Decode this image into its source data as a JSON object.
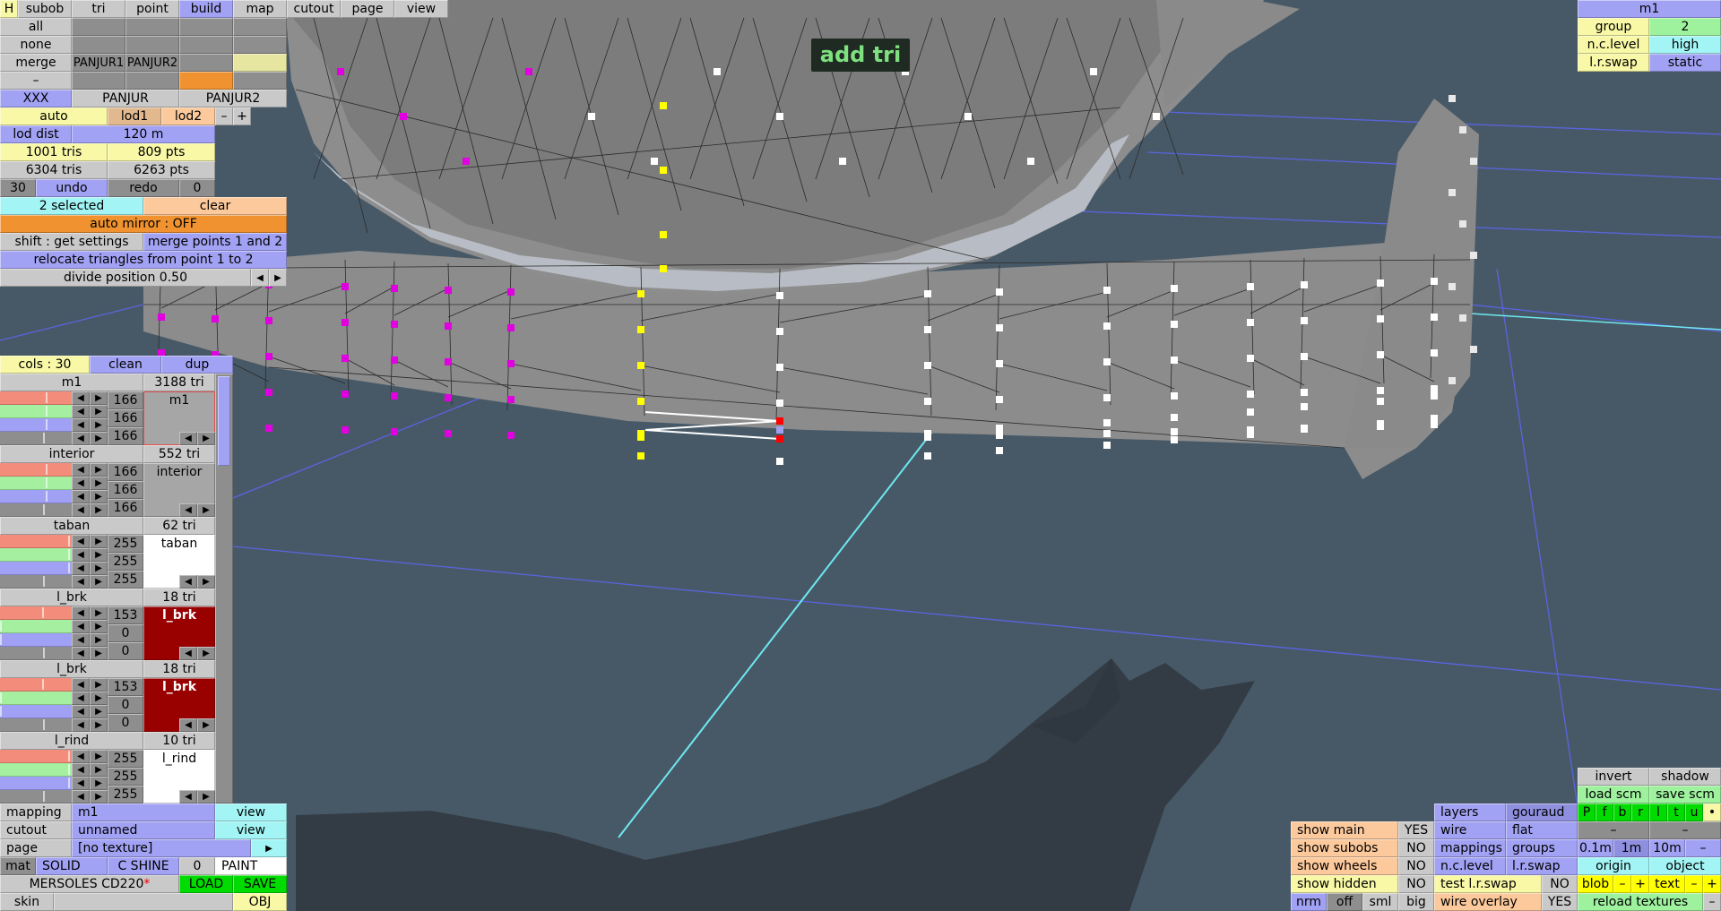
{
  "top_menu": {
    "h": "H",
    "items": [
      "subob",
      "tri",
      "point",
      "build",
      "map",
      "cutout",
      "page",
      "view"
    ],
    "active": "build"
  },
  "subob_panel": {
    "rows": [
      "all",
      "none",
      "merge",
      "–"
    ],
    "merge_cells": [
      "PANJUR1",
      "PANJUR2"
    ],
    "groups": [
      "XXX",
      "PANJUR",
      "PANJUR2"
    ]
  },
  "lod": {
    "auto": "auto",
    "lod1": "lod1",
    "lod2": "lod2",
    "minus": "–",
    "plus": "+",
    "dist_label": "lod dist",
    "dist_value": "120 m",
    "tris1": "1001 tris",
    "pts1": "809 pts",
    "tris2": "6304 tris",
    "pts2": "6263 pts"
  },
  "history": {
    "count": "30",
    "undo": "undo",
    "redo": "redo",
    "redo_count": "0"
  },
  "selection": {
    "selected": "2 selected",
    "clear": "clear",
    "auto_mirror": "auto mirror : OFF",
    "shift": "shift : get settings",
    "merge": "merge points 1 and 2",
    "relocate": "relocate triangles from point 1 to 2",
    "divide": "divide position 0.50",
    "left_arrow": "◀",
    "right_arrow": "▶"
  },
  "viewport": {
    "mode_label": "add tri"
  },
  "materials_header": {
    "cols": "cols : 30",
    "clean": "clean",
    "dup": "dup"
  },
  "materials": [
    {
      "name": "m1",
      "tris": "3188 tri",
      "values": [
        "166",
        "166",
        "166"
      ],
      "swatch_label": "m1",
      "swatch_color": "#a6a6a6",
      "selected": true
    },
    {
      "name": "interior",
      "tris": "552 tri",
      "values": [
        "166",
        "166",
        "166"
      ],
      "swatch_label": "interior",
      "swatch_color": "#a6a6a6",
      "selected": false
    },
    {
      "name": "taban",
      "tris": "62 tri",
      "values": [
        "255",
        "255",
        "255"
      ],
      "swatch_label": "taban",
      "swatch_color": "#ffffff",
      "selected": false
    },
    {
      "name": "l_brk",
      "tris": "18 tri",
      "values": [
        "153",
        "0",
        "0"
      ],
      "swatch_label": "l_brk",
      "swatch_color": "#990000",
      "selected": false
    },
    {
      "name": "l_brk",
      "tris": "18 tri",
      "values": [
        "153",
        "0",
        "0"
      ],
      "swatch_label": "l_brk",
      "swatch_color": "#990000",
      "selected": false
    },
    {
      "name": "l_rind",
      "tris": "10 tri",
      "values": [
        "255",
        "255",
        "255"
      ],
      "swatch_label": "l_rind",
      "swatch_color": "#ffffff",
      "selected": false
    }
  ],
  "bottom_left": {
    "mapping_label": "mapping",
    "mapping_value": "m1",
    "mapping_view": "view",
    "cutout_label": "cutout",
    "cutout_value": "unnamed",
    "cutout_view": "view",
    "page_label": "page",
    "page_value": "[no texture]",
    "page_arrow": "▶",
    "mat_label": "mat",
    "solid": "SOLID",
    "shine": "C SHINE",
    "shine_value": "0",
    "paint": "PAINT",
    "file_name": "MERSOLES CD220",
    "modified": "*",
    "load": "LOAD",
    "save": "SAVE",
    "skin_label": "skin",
    "obj": "OBJ"
  },
  "top_right": {
    "title": "m1",
    "group_label": "group",
    "group_value": "2",
    "nc_label": "n.c.level",
    "nc_value": "high",
    "lr_label": "l.r.swap",
    "lr_value": "static"
  },
  "bottom_right": {
    "invert": "invert",
    "shadow": "shadow",
    "load_scm": "load scm",
    "save_scm": "save scm",
    "layers": "layers",
    "gouraud": "gouraud",
    "wire": "wire",
    "flat": "flat",
    "mappings": "mappings",
    "groups": "groups",
    "nc_level": "n.c.level",
    "lr_swap": "l.r.swap",
    "views": [
      "P",
      "f",
      "b",
      "r",
      "l",
      "t",
      "u",
      "•"
    ],
    "dash1": "–",
    "dash2": "–",
    "grid": [
      "0.1m",
      "1m",
      "10m",
      "–"
    ],
    "origin": "origin",
    "object": "object",
    "blob": "blob",
    "blob_minus": "–",
    "blob_plus": "+",
    "text": "text",
    "text_minus": "–",
    "text_plus": "+",
    "reload": "reload textures",
    "reload_minus": "–",
    "show_main": "show main",
    "show_main_v": "YES",
    "show_subobs": "show subobs",
    "show_subobs_v": "NO",
    "show_wheels": "show wheels",
    "show_wheels_v": "NO",
    "show_hidden": "show hidden",
    "show_hidden_v": "NO",
    "test_lr": "test l.r.swap",
    "test_lr_v": "NO",
    "wire_overlay": "wire overlay",
    "wire_overlay_v": "YES",
    "normals": [
      "nrm",
      "off",
      "sml",
      "big"
    ]
  },
  "colors": {
    "background": "#475967",
    "mesh": "#8a8a8a",
    "selected_points": "#ffff00",
    "other_points": "#e000e0",
    "accent_blue": "#a2a2f4"
  }
}
